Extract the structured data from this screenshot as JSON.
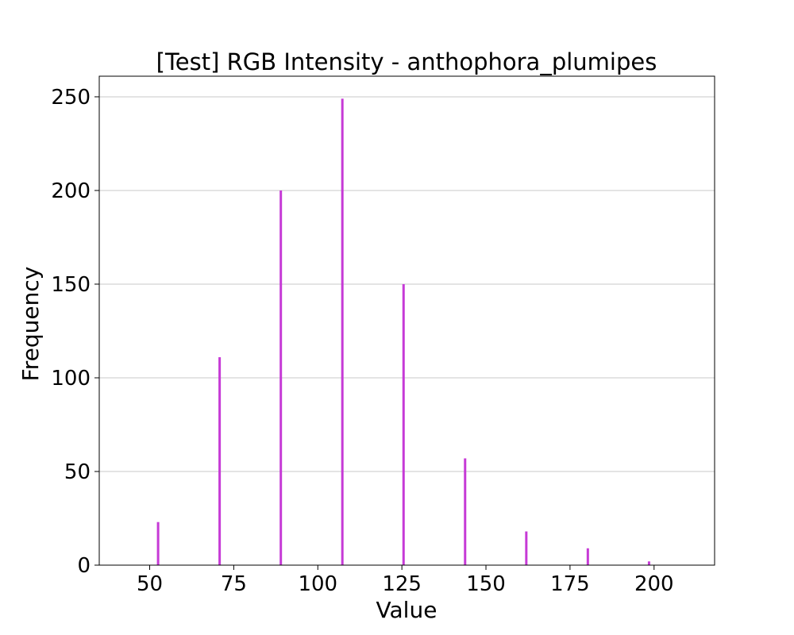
{
  "chart_data": {
    "type": "bar",
    "title": "[Test] RGB Intensity - anthophora_plumipes",
    "xlabel": "Value",
    "ylabel": "Frequency",
    "xlim": [
      35,
      218
    ],
    "ylim": [
      0,
      261
    ],
    "xticks": [
      50,
      75,
      100,
      125,
      150,
      175,
      200
    ],
    "yticks": [
      0,
      50,
      100,
      150,
      200,
      250
    ],
    "grid": "y",
    "bar_color": "#c63ad6",
    "bars": [
      {
        "x": 52.5,
        "y": 23
      },
      {
        "x": 70.8,
        "y": 111
      },
      {
        "x": 89.0,
        "y": 200
      },
      {
        "x": 107.3,
        "y": 249
      },
      {
        "x": 125.5,
        "y": 150
      },
      {
        "x": 143.8,
        "y": 57
      },
      {
        "x": 162.0,
        "y": 18
      },
      {
        "x": 180.3,
        "y": 9
      },
      {
        "x": 198.5,
        "y": 2
      }
    ]
  }
}
